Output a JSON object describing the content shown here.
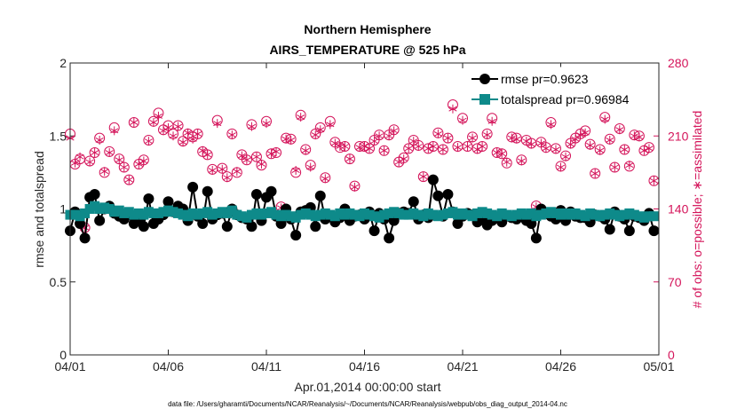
{
  "chart_data": {
    "type": "line",
    "title_line1": "Northern Hemisphere",
    "title_line2": "AIRS_TEMPERATURE @ 525 hPa",
    "xlabel": "Apr.01,2014 00:00:00 start",
    "ylabel_left": "rmse and totalspread",
    "ylabel_right": "# of obs: o=possible; ∗=assimilated",
    "xlim_days": [
      0,
      30
    ],
    "ylim_left": [
      0,
      2
    ],
    "ylim_right": [
      0,
      280
    ],
    "x_ticks": [
      {
        "day": 0,
        "label": "04/01"
      },
      {
        "day": 5,
        "label": "04/06"
      },
      {
        "day": 10,
        "label": "04/11"
      },
      {
        "day": 15,
        "label": "04/16"
      },
      {
        "day": 20,
        "label": "04/21"
      },
      {
        "day": 25,
        "label": "04/26"
      },
      {
        "day": 30,
        "label": "05/01"
      }
    ],
    "y_ticks_left": [
      {
        "value": 0,
        "label": "0"
      },
      {
        "value": 0.5,
        "label": "0.5"
      },
      {
        "value": 1,
        "label": "1"
      },
      {
        "value": 1.5,
        "label": "1.5"
      },
      {
        "value": 2,
        "label": "2"
      }
    ],
    "y_ticks_right": [
      {
        "value": 0,
        "label": "0"
      },
      {
        "value": 70,
        "label": "70"
      },
      {
        "value": 140,
        "label": "140"
      },
      {
        "value": 210,
        "label": "210"
      },
      {
        "value": 280,
        "label": "280"
      }
    ],
    "legend": [
      {
        "name": "rmse",
        "label": "rmse pr=0.9623",
        "color": "#000000"
      },
      {
        "name": "totalspread",
        "label": "totalspread pr=0.96984",
        "color": "#0e8a8a"
      }
    ],
    "colors": {
      "rmse": "#000000",
      "totalspread": "#0e8a8a",
      "obs": "#d4145a",
      "axis": "#262626"
    },
    "points_per_day": 4,
    "rmse": [
      0.85,
      0.98,
      0.9,
      0.8,
      1.08,
      1.1,
      0.92,
      1.0,
      1.02,
      0.97,
      0.95,
      0.93,
      0.96,
      0.9,
      0.93,
      0.88,
      1.07,
      0.9,
      0.93,
      0.96,
      1.05,
      0.98,
      1.02,
      1.0,
      0.92,
      1.15,
      0.95,
      0.9,
      1.12,
      0.93,
      0.96,
      0.97,
      0.88,
      1.0,
      0.96,
      0.94,
      0.93,
      0.88,
      1.1,
      0.92,
      1.08,
      1.12,
      0.95,
      0.9,
      1.0,
      0.93,
      0.82,
      0.98,
      0.99,
      1.01,
      0.88,
      1.09,
      0.93,
      0.95,
      0.91,
      0.94,
      1.0,
      0.92,
      0.95,
      0.96,
      0.93,
      0.98,
      0.85,
      0.97,
      0.93,
      0.8,
      0.92,
      0.97,
      0.98,
      0.97,
      1.05,
      0.93,
      0.96,
      0.94,
      1.2,
      1.09,
      0.95,
      1.1,
      0.98,
      0.9,
      0.95,
      0.97,
      0.96,
      0.91,
      0.93,
      0.89,
      0.92,
      0.94,
      0.91,
      0.95,
      0.94,
      0.93,
      0.96,
      0.92,
      0.9,
      0.8,
      1.0,
      0.97,
      0.95,
      0.93,
      0.99,
      0.92,
      0.98,
      0.95,
      0.94,
      0.94,
      0.91,
      0.96,
      0.95,
      0.93,
      0.86,
      0.98,
      0.95,
      0.93,
      0.85,
      0.95,
      0.94,
      0.92,
      0.97,
      0.85
    ],
    "totalspread": [
      0.96,
      0.96,
      0.95,
      0.97,
      1.0,
      1.02,
      1.0,
      1.01,
      1.0,
      0.98,
      0.99,
      0.97,
      0.98,
      0.96,
      0.97,
      0.96,
      0.98,
      0.97,
      0.97,
      0.98,
      0.99,
      0.98,
      0.97,
      0.96,
      0.95,
      0.97,
      0.96,
      0.97,
      0.98,
      0.96,
      0.97,
      0.98,
      0.97,
      0.99,
      0.96,
      0.95,
      0.94,
      0.96,
      0.97,
      0.96,
      0.97,
      0.98,
      0.96,
      0.95,
      0.96,
      0.95,
      0.94,
      0.96,
      0.97,
      0.96,
      0.95,
      0.96,
      0.97,
      0.96,
      0.95,
      0.97,
      0.96,
      0.97,
      0.96,
      0.95,
      0.97,
      0.96,
      0.95,
      0.94,
      0.96,
      0.97,
      0.98,
      0.97,
      0.96,
      0.96,
      0.97,
      0.96,
      0.95,
      0.97,
      0.96,
      0.95,
      0.96,
      0.97,
      0.98,
      0.96,
      0.97,
      0.96,
      0.95,
      0.97,
      0.98,
      0.97,
      0.96,
      0.95,
      0.97,
      0.96,
      0.95,
      0.96,
      0.97,
      0.96,
      0.97,
      0.95,
      0.96,
      0.97,
      0.98,
      0.97,
      0.96,
      0.97,
      0.96,
      0.97,
      0.96,
      0.95,
      0.97,
      0.96,
      0.95,
      0.96,
      0.97,
      0.96,
      0.95,
      0.96,
      0.97,
      0.96,
      0.95,
      0.94,
      0.95,
      0.95
    ],
    "obs_possible": [
      212,
      183,
      188,
      122,
      186,
      194,
      208,
      175,
      195,
      218,
      188,
      180,
      168,
      223,
      183,
      187,
      206,
      224,
      232,
      216,
      220,
      212,
      220,
      205,
      212,
      209,
      212,
      195,
      192,
      178,
      225,
      179,
      171,
      212,
      175,
      192,
      187,
      221,
      190,
      182,
      224,
      193,
      194,
      142,
      208,
      207,
      175,
      230,
      197,
      182,
      212,
      218,
      170,
      224,
      204,
      199,
      200,
      188,
      162,
      200,
      200,
      198,
      206,
      211,
      196,
      211,
      216,
      185,
      189,
      198,
      206,
      201,
      171,
      198,
      200,
      213,
      197,
      208,
      240,
      200,
      227,
      200,
      209,
      198,
      200,
      212,
      227,
      194,
      193,
      184,
      209,
      208,
      187,
      206,
      203,
      143,
      204,
      199,
      223,
      198,
      181,
      191,
      203,
      208,
      212,
      215,
      202,
      174,
      197,
      228,
      207,
      180,
      217,
      197,
      181,
      211,
      210,
      196,
      199,
      167
    ],
    "obs_assimilated": [
      208,
      184,
      190,
      122,
      185,
      194,
      206,
      176,
      194,
      215,
      187,
      180,
      168,
      223,
      183,
      186,
      205,
      223,
      229,
      215,
      218,
      210,
      219,
      204,
      213,
      207,
      212,
      196,
      192,
      177,
      222,
      178,
      170,
      211,
      176,
      191,
      187,
      219,
      190,
      183,
      222,
      193,
      195,
      141,
      207,
      206,
      177,
      228,
      196,
      180,
      211,
      216,
      169,
      221,
      203,
      200,
      200,
      188,
      161,
      199,
      200,
      198,
      205,
      210,
      196,
      210,
      215,
      185,
      188,
      198,
      205,
      200,
      171,
      198,
      200,
      212,
      197,
      208,
      236,
      199,
      225,
      200,
      208,
      197,
      200,
      211,
      224,
      194,
      193,
      185,
      208,
      207,
      186,
      205,
      202,
      142,
      203,
      198,
      221,
      197,
      180,
      190,
      202,
      207,
      211,
      213,
      201,
      174,
      196,
      226,
      206,
      180,
      216,
      197,
      182,
      210,
      209,
      196,
      198,
      167
    ]
  },
  "footer": "data file: /Users/gharamti/Documents/NCAR/Reanalysis/~/Documents/NCAR/Reanalysis/webpub/obs_diag_output_2014-04.nc"
}
